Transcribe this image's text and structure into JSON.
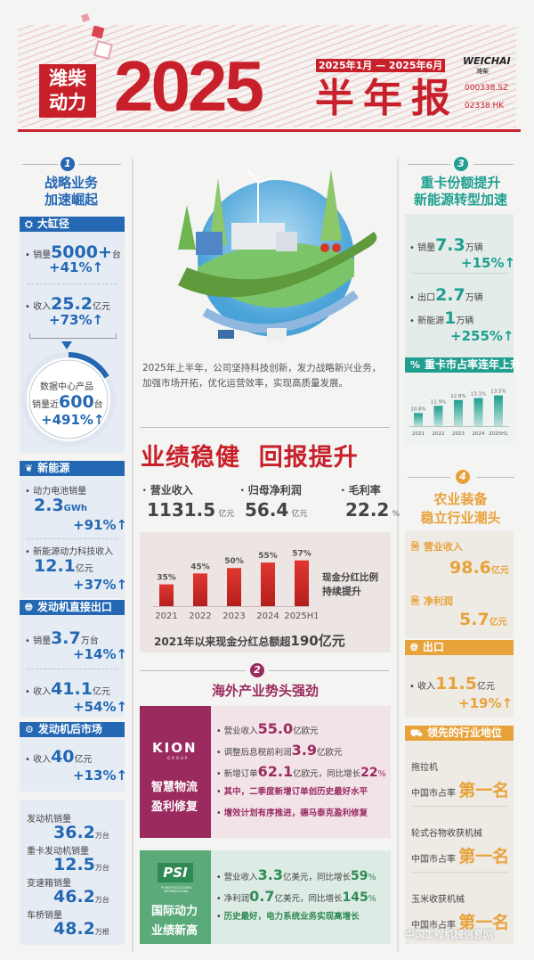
{
  "header": {
    "brand_line1": "潍柴",
    "brand_line2": "动力",
    "year": "2025",
    "period": "2025年1月 — 2025年6月",
    "report": "半年报",
    "logo_en": "WEICHAI",
    "logo_cn": "潍柴",
    "code_sz": "000338.SZ",
    "code_hk": "02338.HK"
  },
  "colors": {
    "red": "#c8202a",
    "blue": "#2468b4",
    "teal": "#1f9f8f",
    "orange": "#e8a23a",
    "magenta": "#9b2b5e",
    "green": "#5aaa7a"
  },
  "section1": {
    "num": "1",
    "title1": "战略业务",
    "title2": "加速崛起",
    "large_bore": {
      "label": "大缸径",
      "sales_label": "销量",
      "sales": "5000+",
      "sales_unit": "台",
      "sales_growth": "+41%",
      "rev_label": "收入",
      "rev": "25.2",
      "rev_unit": "亿元",
      "rev_growth": "+73%",
      "dc_line1": "数据中心产品",
      "dc_label": "销量近",
      "dc_value": "600",
      "dc_unit": "台",
      "dc_growth": "+491%"
    },
    "new_energy": {
      "label": "新能源",
      "battery_label": "动力电池销量",
      "battery": "2.3",
      "battery_unit": "GWh",
      "battery_growth": "+91%",
      "tech_label": "新能源动力科技收入",
      "tech": "12.1",
      "tech_unit": "亿元",
      "tech_growth": "+37%"
    },
    "export": {
      "label": "发动机直接出口",
      "sales_label": "销量",
      "sales": "3.7",
      "sales_unit": "万台",
      "sales_growth": "+14%",
      "rev_label": "收入",
      "rev": "41.1",
      "rev_unit": "亿元",
      "rev_growth": "+54%"
    },
    "aftermarket": {
      "label": "发动机后市场",
      "rev_label": "收入",
      "rev": "40",
      "rev_unit": "亿元",
      "rev_growth": "+13%"
    },
    "volumes": [
      {
        "label": "发动机销量",
        "value": "36.2",
        "unit": "万台"
      },
      {
        "label": "重卡发动机销量",
        "value": "12.5",
        "unit": "万台"
      },
      {
        "label": "变速箱销量",
        "value": "46.2",
        "unit": "万台"
      },
      {
        "label": "车桥销量",
        "value": "48.2",
        "unit": "万根"
      }
    ]
  },
  "intro": {
    "line1": "2025年上半年，公司坚持科技创新，发力战略新兴业务，",
    "line2": "加强市场开拓，优化运营效率，实现高质量发展。"
  },
  "performance": {
    "title": "业绩稳健  回报提升",
    "kpis": [
      {
        "label": "营业收入",
        "value": "1131.5",
        "unit": "亿元"
      },
      {
        "label": "归母净利润",
        "value": "56.4",
        "unit": "亿元"
      },
      {
        "label": "毛利率",
        "value": "22.2",
        "unit": "%"
      }
    ],
    "side_line1": "现金分红比例",
    "side_line2": "持续提升",
    "total_text": "2021年以来现金分红总额超",
    "total_value": "190亿元"
  },
  "chart_data": [
    {
      "type": "bar",
      "title": "现金分红比例",
      "categories": [
        "2021",
        "2022",
        "2023",
        "2024",
        "2025H1"
      ],
      "values": [
        35,
        45,
        50,
        55,
        57
      ],
      "value_labels": [
        "35%",
        "45%",
        "50%",
        "55%",
        "57%"
      ],
      "ylim": [
        15,
        60
      ],
      "unit": "%"
    },
    {
      "type": "bar",
      "title": "重卡市占率连年上升",
      "categories": [
        "2021",
        "2022",
        "2023",
        "2024",
        "2025H1"
      ],
      "values": [
        10.8,
        11.9,
        12.8,
        13.1,
        13.5
      ],
      "value_labels": [
        "10.8%",
        "11.9%",
        "12.8%",
        "13.1%",
        "13.5%"
      ],
      "ylim": [
        8.8,
        14
      ],
      "unit": "%"
    }
  ],
  "section2": {
    "num": "2",
    "title": "海外产业势头强劲",
    "kion": {
      "logo": "KION",
      "logo_sub": "GROUP",
      "tag1": "智慧物流",
      "tag2": "盈利修复",
      "items": [
        {
          "pre": "营业收入",
          "num": "55.0",
          "post": "亿欧元"
        },
        {
          "pre": "调整后息税前利润",
          "num": "3.9",
          "post": "亿欧元"
        },
        {
          "pre": "新增订单",
          "num": "62.1",
          "post": "亿欧元，同比增长",
          "num2": "22",
          "post2": "%"
        },
        {
          "text": "其中，二季度新增订单创历史最好水平"
        },
        {
          "text": "增效计划有序推进，德马泰克盈利修复"
        }
      ]
    },
    "psi": {
      "logo": "PSI",
      "logo_sub": "POWER SOLUTIONS INTERNATIONAL",
      "tag1": "国际动力",
      "tag2": "业绩新高",
      "items": [
        {
          "pre": "营业收入",
          "num": "3.3",
          "post": "亿美元，同比增长",
          "num2": "59",
          "post2": "%"
        },
        {
          "pre": "净利润",
          "num": "0.7",
          "post": "亿美元，同比增长",
          "num2": "145",
          "post2": "%"
        },
        {
          "text": "历史最好，电力系统业务实现高增长"
        }
      ]
    }
  },
  "section3": {
    "num": "3",
    "title1": "重卡份额提升",
    "title2": "新能源转型加速",
    "sales_label": "销量",
    "sales": "7.3",
    "sales_unit": "万辆",
    "sales_growth": "+15%",
    "export_label": "出口",
    "export": "2.7",
    "export_unit": "万辆",
    "ne_label": "新能源",
    "ne": "1",
    "ne_unit": "万辆",
    "ne_growth": "+255%",
    "share_label": "重卡市占率连年上升"
  },
  "section4": {
    "num": "4",
    "title1": "农业装备",
    "title2": "稳立行业潮头",
    "rev_label": "营业收入",
    "rev": "98.6",
    "rev_unit": "亿元",
    "profit_label": "净利润",
    "profit": "5.7",
    "profit_unit": "亿元",
    "export_label": "出口",
    "export_rev_label": "收入",
    "export_rev": "11.5",
    "export_rev_unit": "亿元",
    "export_growth": "+19%",
    "leading_label": "领先的行业地位",
    "leaders": [
      {
        "product": "拖拉机",
        "share": "中国市占率",
        "rank": "第一名"
      },
      {
        "product": "轮式谷物收获机械",
        "share": "中国市占率",
        "rank": "第一名"
      },
      {
        "product": "玉米收获机械",
        "share": "中国市占率",
        "rank": "第一名"
      }
    ]
  },
  "watermark": "中国工程机械信息网"
}
